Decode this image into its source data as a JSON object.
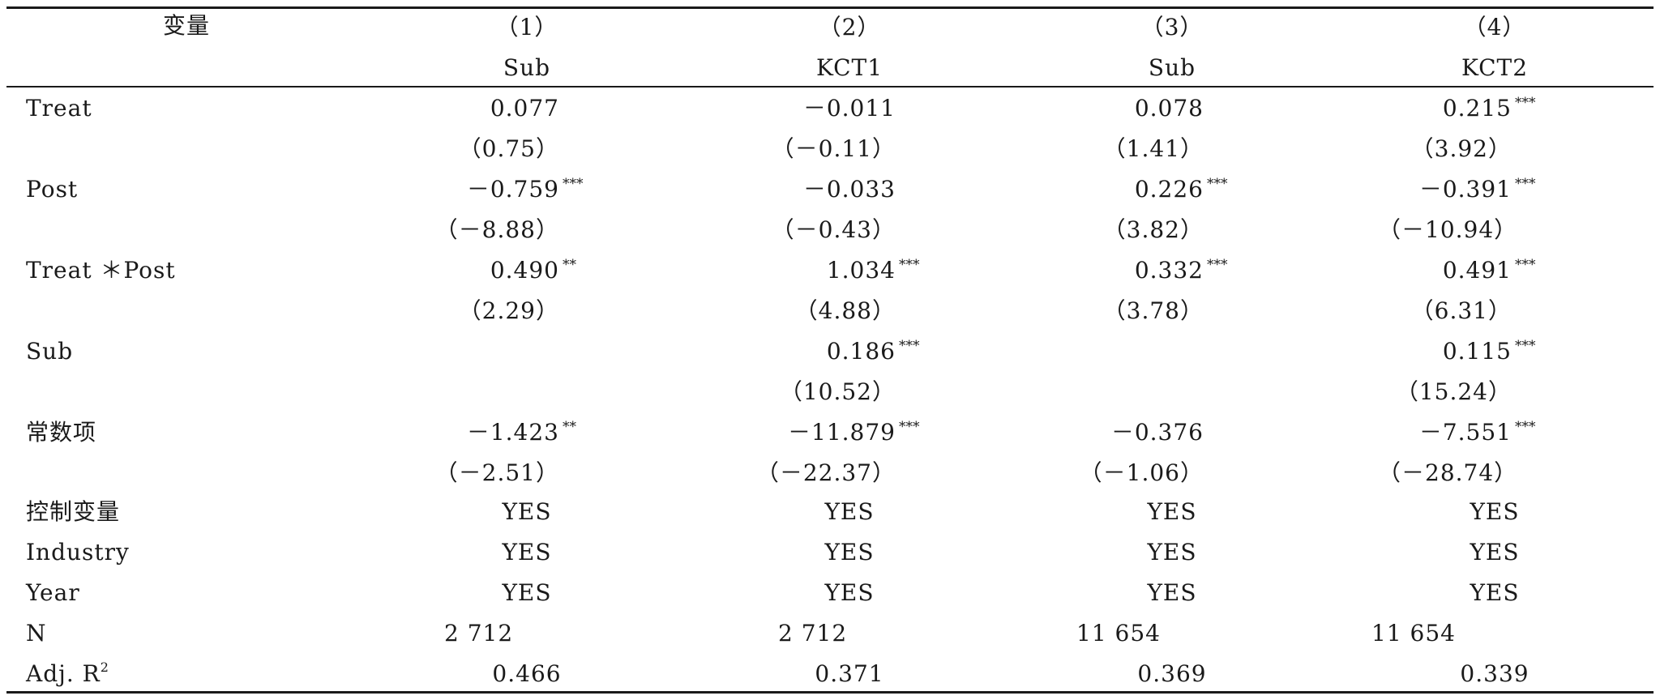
{
  "table": {
    "header": {
      "label": "变量",
      "models": [
        "（1）",
        "（2）",
        "（3）",
        "（4）"
      ],
      "dependent": [
        "Sub",
        "KCT1",
        "Sub",
        "KCT2"
      ]
    },
    "rows": {
      "treat": {
        "label": "Treat",
        "coef": [
          "0.077",
          "－0.011",
          "0.078",
          "0.215"
        ],
        "stars": [
          "",
          "",
          "",
          "***"
        ],
        "t": [
          "（0.75）",
          "（－0.11）",
          "（1.41）",
          "（3.92）"
        ]
      },
      "post": {
        "label": "Post",
        "coef": [
          "－0.759",
          "－0.033",
          "0.226",
          "－0.391"
        ],
        "stars": [
          "***",
          "",
          "***",
          "***"
        ],
        "t": [
          "（－8.88）",
          "（－0.43）",
          "（3.82）",
          "（－10.94）"
        ]
      },
      "treat_post": {
        "label": "Treat ＊Post",
        "coef": [
          "0.490",
          "1.034",
          "0.332",
          "0.491"
        ],
        "stars": [
          "**",
          "***",
          "***",
          "***"
        ],
        "t": [
          "（2.29）",
          "（4.88）",
          "（3.78）",
          "（6.31）"
        ]
      },
      "sub": {
        "label": "Sub",
        "coef": [
          "",
          "0.186",
          "",
          "0.115"
        ],
        "stars": [
          "",
          "***",
          "",
          "***"
        ],
        "t": [
          "",
          "（10.52）",
          "",
          "（15.24）"
        ]
      },
      "const": {
        "label": "常数项",
        "coef": [
          "－1.423",
          "－11.879",
          "－0.376",
          "－7.551"
        ],
        "stars": [
          "**",
          "***",
          "",
          "***"
        ],
        "t": [
          "（－2.51）",
          "（－22.37）",
          "（－1.06）",
          "（－28.74）"
        ]
      },
      "controls": {
        "label": "控制变量",
        "values": [
          "YES",
          "YES",
          "YES",
          "YES"
        ]
      },
      "industry": {
        "label": "Industry",
        "values": [
          "YES",
          "YES",
          "YES",
          "YES"
        ]
      },
      "year": {
        "label": "Year",
        "values": [
          "YES",
          "YES",
          "YES",
          "YES"
        ]
      },
      "n": {
        "label": "N",
        "values": [
          "2 712",
          "2 712",
          "11 654",
          "11 654"
        ]
      },
      "adjr2": {
        "label": "Adj. R",
        "label_sup": "2",
        "values": [
          "0.466",
          "0.371",
          "0.369",
          "0.339"
        ]
      }
    }
  }
}
